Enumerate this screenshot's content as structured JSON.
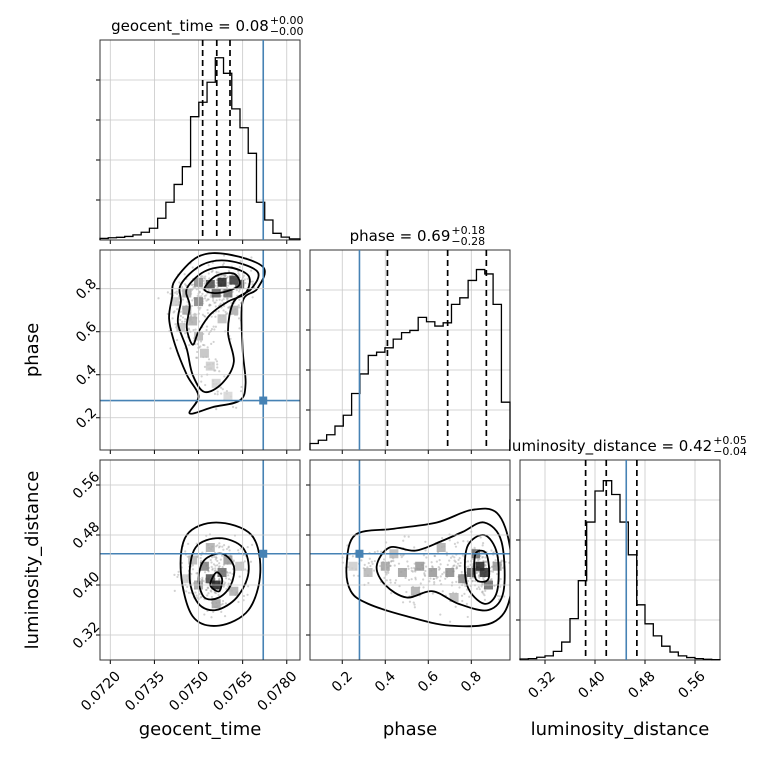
{
  "chart_data": {
    "type": "corner",
    "parameters": [
      "geocent_time",
      "phase",
      "luminosity_distance"
    ],
    "truths": {
      "geocent_time": 0.0772,
      "phase": 0.28,
      "luminosity_distance": 0.45
    },
    "truth_color": "#4682b4",
    "line_color": "#000000",
    "titles": [
      {
        "param": "geocent_time",
        "text": "geocent_time = 0.08",
        "sup": "+0.00",
        "sub": "−0.00"
      },
      {
        "param": "phase",
        "text": "phase = 0.69",
        "sup": "+0.18",
        "sub": "−0.28"
      },
      {
        "param": "luminosity_distance",
        "text": "luminosity_distance = 0.42",
        "sup": "+0.05",
        "sub": "−0.04"
      }
    ],
    "axes": {
      "geocent_time": {
        "range": [
          0.07165,
          0.07845
        ],
        "ticks": [
          "0.0720",
          "0.0735",
          "0.0750",
          "0.0765",
          "0.0780"
        ],
        "tick_values": [
          0.072,
          0.0735,
          0.075,
          0.0765,
          0.078
        ]
      },
      "phase": {
        "range": [
          0.05,
          0.98
        ],
        "ticks": [
          "0.2",
          "0.4",
          "0.6",
          "0.8"
        ],
        "tick_values": [
          0.2,
          0.4,
          0.6,
          0.8
        ]
      },
      "luminosity_distance": {
        "range": [
          0.28,
          0.6
        ],
        "ticks": [
          "0.32",
          "0.40",
          "0.48",
          "0.56"
        ],
        "tick_values": [
          0.32,
          0.4,
          0.48,
          0.56
        ]
      }
    },
    "histograms": {
      "geocent_time": {
        "quantiles": [
          0.07514,
          0.07562,
          0.07607
        ],
        "bins": [
          [
            0.07165,
            0.7
          ],
          [
            0.07193,
            1.0
          ],
          [
            0.07221,
            1.2
          ],
          [
            0.07249,
            1.6
          ],
          [
            0.07277,
            2.3
          ],
          [
            0.07305,
            3.5
          ],
          [
            0.07333,
            5.3
          ],
          [
            0.07361,
            9.8
          ],
          [
            0.07389,
            17.0
          ],
          [
            0.07417,
            25.0
          ],
          [
            0.07445,
            33.0
          ],
          [
            0.07473,
            55.5
          ],
          [
            0.07501,
            62.0
          ],
          [
            0.07529,
            71.0
          ],
          [
            0.07557,
            82.0
          ],
          [
            0.07585,
            75.0
          ],
          [
            0.07613,
            59.0
          ],
          [
            0.07641,
            50.5
          ],
          [
            0.07669,
            39.0
          ],
          [
            0.07697,
            17.0
          ],
          [
            0.07725,
            9.0
          ],
          [
            0.07753,
            3.0
          ],
          [
            0.07781,
            1.3
          ],
          [
            0.07809,
            0.5
          ]
        ],
        "ymax": 90
      },
      "phase": {
        "quantiles": [
          0.41,
          0.69,
          0.87
        ],
        "bins": [
          [
            0.05,
            3
          ],
          [
            0.0887,
            4.5
          ],
          [
            0.1274,
            7
          ],
          [
            0.1661,
            11
          ],
          [
            0.2048,
            16
          ],
          [
            0.2435,
            26
          ],
          [
            0.2822,
            35
          ],
          [
            0.3209,
            43.5
          ],
          [
            0.3596,
            45
          ],
          [
            0.3983,
            47
          ],
          [
            0.437,
            51
          ],
          [
            0.4757,
            54
          ],
          [
            0.5144,
            55
          ],
          [
            0.5531,
            61
          ],
          [
            0.5918,
            59
          ],
          [
            0.6305,
            57
          ],
          [
            0.6692,
            58.5
          ],
          [
            0.7079,
            67
          ],
          [
            0.7466,
            70
          ],
          [
            0.7853,
            78
          ],
          [
            0.824,
            83
          ],
          [
            0.8627,
            81
          ],
          [
            0.9014,
            67
          ],
          [
            0.9401,
            22
          ]
        ],
        "ymax": 92
      },
      "luminosity_distance": {
        "quantiles": [
          0.385,
          0.418,
          0.467
        ],
        "bins": [
          [
            0.28,
            0.3
          ],
          [
            0.2933,
            0.4
          ],
          [
            0.3067,
            0.8
          ],
          [
            0.32,
            1.2
          ],
          [
            0.3333,
            2.5
          ],
          [
            0.3467,
            5.2
          ],
          [
            0.36,
            12.0
          ],
          [
            0.3733,
            23.0
          ],
          [
            0.3867,
            40.0
          ],
          [
            0.4,
            49.0
          ],
          [
            0.4133,
            52.0
          ],
          [
            0.4267,
            48.0
          ],
          [
            0.44,
            40.0
          ],
          [
            0.4533,
            30.5
          ],
          [
            0.4667,
            16.0
          ],
          [
            0.48,
            10.5
          ],
          [
            0.4933,
            7.0
          ],
          [
            0.5067,
            4.0
          ],
          [
            0.52,
            2.3
          ],
          [
            0.5333,
            1.2
          ],
          [
            0.5467,
            0.7
          ],
          [
            0.56,
            0.4
          ],
          [
            0.5733,
            0.2
          ],
          [
            0.5867,
            0.1
          ]
        ],
        "ymax": 58
      }
    },
    "pairs": [
      {
        "x": "geocent_time",
        "y": "phase",
        "density_cells": [
          [
            0.075,
            0.83,
            0.45
          ],
          [
            0.0754,
            0.82,
            0.75
          ],
          [
            0.0758,
            0.83,
            0.95
          ],
          [
            0.0762,
            0.84,
            0.85
          ],
          [
            0.0764,
            0.82,
            0.7
          ],
          [
            0.0756,
            0.78,
            0.65
          ],
          [
            0.076,
            0.78,
            0.6
          ],
          [
            0.075,
            0.74,
            0.5
          ],
          [
            0.0746,
            0.78,
            0.3
          ],
          [
            0.0746,
            0.7,
            0.35
          ],
          [
            0.0748,
            0.65,
            0.3
          ],
          [
            0.075,
            0.58,
            0.25
          ],
          [
            0.0752,
            0.5,
            0.2
          ],
          [
            0.0754,
            0.44,
            0.15
          ],
          [
            0.0756,
            0.36,
            0.12
          ],
          [
            0.076,
            0.3,
            0.1
          ],
          [
            0.0762,
            0.7,
            0.3
          ],
          [
            0.0758,
            0.66,
            0.22
          ],
          [
            0.0744,
            0.62,
            0.18
          ],
          [
            0.0742,
            0.74,
            0.15
          ]
        ],
        "contours": [
          [
            [
              0.0752,
              0.8
            ],
            [
              0.0756,
              0.86
            ],
            [
              0.0762,
              0.87
            ],
            [
              0.0764,
              0.82
            ],
            [
              0.076,
              0.79
            ],
            [
              0.0755,
              0.78
            ]
          ],
          [
            [
              0.0746,
              0.8
            ],
            [
              0.0752,
              0.88
            ],
            [
              0.076,
              0.9
            ],
            [
              0.0767,
              0.86
            ],
            [
              0.0766,
              0.78
            ],
            [
              0.076,
              0.74
            ],
            [
              0.0754,
              0.68
            ],
            [
              0.075,
              0.6
            ],
            [
              0.0748,
              0.54
            ],
            [
              0.0746,
              0.62
            ],
            [
              0.0747,
              0.72
            ]
          ],
          [
            [
              0.0744,
              0.82
            ],
            [
              0.0751,
              0.91
            ],
            [
              0.076,
              0.93
            ],
            [
              0.077,
              0.88
            ],
            [
              0.0768,
              0.8
            ],
            [
              0.0762,
              0.74
            ],
            [
              0.076,
              0.6
            ],
            [
              0.0762,
              0.46
            ],
            [
              0.0758,
              0.36
            ],
            [
              0.0752,
              0.32
            ],
            [
              0.0748,
              0.4
            ],
            [
              0.0746,
              0.52
            ],
            [
              0.0743,
              0.64
            ],
            [
              0.0744,
              0.74
            ]
          ],
          [
            [
              0.0742,
              0.84
            ],
            [
              0.075,
              0.95
            ],
            [
              0.076,
              0.96
            ],
            [
              0.0772,
              0.9
            ],
            [
              0.077,
              0.8
            ],
            [
              0.0765,
              0.74
            ],
            [
              0.0765,
              0.52
            ],
            [
              0.0766,
              0.36
            ],
            [
              0.0764,
              0.28
            ],
            [
              0.0755,
              0.25
            ],
            [
              0.0747,
              0.22
            ],
            [
              0.075,
              0.3
            ],
            [
              0.0746,
              0.4
            ],
            [
              0.0742,
              0.54
            ],
            [
              0.074,
              0.66
            ],
            [
              0.0741,
              0.76
            ]
          ]
        ]
      },
      {
        "x": "geocent_time",
        "y": "luminosity_distance",
        "density_cells": [
          [
            0.0754,
            0.41,
            0.75
          ],
          [
            0.0756,
            0.4,
            0.95
          ],
          [
            0.0758,
            0.42,
            0.6
          ],
          [
            0.0752,
            0.43,
            0.5
          ],
          [
            0.076,
            0.44,
            0.4
          ],
          [
            0.075,
            0.4,
            0.35
          ],
          [
            0.0748,
            0.44,
            0.25
          ],
          [
            0.0762,
            0.39,
            0.3
          ],
          [
            0.0756,
            0.37,
            0.35
          ],
          [
            0.0754,
            0.46,
            0.3
          ],
          [
            0.0764,
            0.43,
            0.2
          ],
          [
            0.0746,
            0.41,
            0.15
          ]
        ],
        "contours": [
          [
            [
              0.0754,
              0.4
            ],
            [
              0.0756,
              0.42
            ],
            [
              0.0758,
              0.41
            ],
            [
              0.0757,
              0.39
            ]
          ],
          [
            [
              0.075,
              0.41
            ],
            [
              0.0752,
              0.44
            ],
            [
              0.0758,
              0.45
            ],
            [
              0.0762,
              0.43
            ],
            [
              0.0761,
              0.4
            ],
            [
              0.0757,
              0.38
            ],
            [
              0.0752,
              0.38
            ]
          ],
          [
            [
              0.0747,
              0.41
            ],
            [
              0.0749,
              0.46
            ],
            [
              0.0757,
              0.475
            ],
            [
              0.0765,
              0.46
            ],
            [
              0.0767,
              0.42
            ],
            [
              0.0763,
              0.38
            ],
            [
              0.0756,
              0.36
            ],
            [
              0.075,
              0.37
            ]
          ],
          [
            [
              0.0744,
              0.42
            ],
            [
              0.0746,
              0.48
            ],
            [
              0.0756,
              0.5
            ],
            [
              0.0768,
              0.48
            ],
            [
              0.0771,
              0.42
            ],
            [
              0.0767,
              0.36
            ],
            [
              0.0757,
              0.335
            ],
            [
              0.0748,
              0.35
            ]
          ]
        ]
      },
      {
        "x": "phase",
        "y": "luminosity_distance",
        "density_cells": [
          [
            0.84,
            0.43,
            0.95
          ],
          [
            0.86,
            0.42,
            0.9
          ],
          [
            0.8,
            0.42,
            0.7
          ],
          [
            0.82,
            0.45,
            0.6
          ],
          [
            0.88,
            0.4,
            0.6
          ],
          [
            0.76,
            0.41,
            0.5
          ],
          [
            0.7,
            0.42,
            0.45
          ],
          [
            0.62,
            0.42,
            0.4
          ],
          [
            0.56,
            0.43,
            0.4
          ],
          [
            0.48,
            0.42,
            0.35
          ],
          [
            0.4,
            0.43,
            0.35
          ],
          [
            0.32,
            0.42,
            0.25
          ],
          [
            0.66,
            0.46,
            0.3
          ],
          [
            0.54,
            0.39,
            0.3
          ],
          [
            0.44,
            0.45,
            0.25
          ],
          [
            0.72,
            0.38,
            0.25
          ],
          [
            0.92,
            0.43,
            0.4
          ],
          [
            0.25,
            0.43,
            0.15
          ]
        ],
        "contours": [
          [
            [
              0.82,
              0.41
            ],
            [
              0.82,
              0.45
            ],
            [
              0.87,
              0.45
            ],
            [
              0.88,
              0.41
            ]
          ],
          [
            [
              0.78,
              0.4
            ],
            [
              0.78,
              0.46
            ],
            [
              0.86,
              0.48
            ],
            [
              0.92,
              0.45
            ],
            [
              0.92,
              0.39
            ],
            [
              0.86,
              0.37
            ]
          ],
          [
            [
              0.36,
              0.43
            ],
            [
              0.42,
              0.46
            ],
            [
              0.54,
              0.455
            ],
            [
              0.66,
              0.47
            ],
            [
              0.76,
              0.485
            ],
            [
              0.86,
              0.5
            ],
            [
              0.94,
              0.47
            ],
            [
              0.95,
              0.39
            ],
            [
              0.88,
              0.36
            ],
            [
              0.74,
              0.37
            ],
            [
              0.62,
              0.39
            ],
            [
              0.5,
              0.38
            ],
            [
              0.4,
              0.4
            ]
          ],
          [
            [
              0.22,
              0.43
            ],
            [
              0.26,
              0.48
            ],
            [
              0.44,
              0.49
            ],
            [
              0.64,
              0.5
            ],
            [
              0.8,
              0.52
            ],
            [
              0.92,
              0.515
            ],
            [
              0.98,
              0.46
            ],
            [
              0.98,
              0.38
            ],
            [
              0.9,
              0.34
            ],
            [
              0.7,
              0.335
            ],
            [
              0.5,
              0.35
            ],
            [
              0.32,
              0.37
            ],
            [
              0.24,
              0.39
            ]
          ]
        ]
      }
    ]
  }
}
